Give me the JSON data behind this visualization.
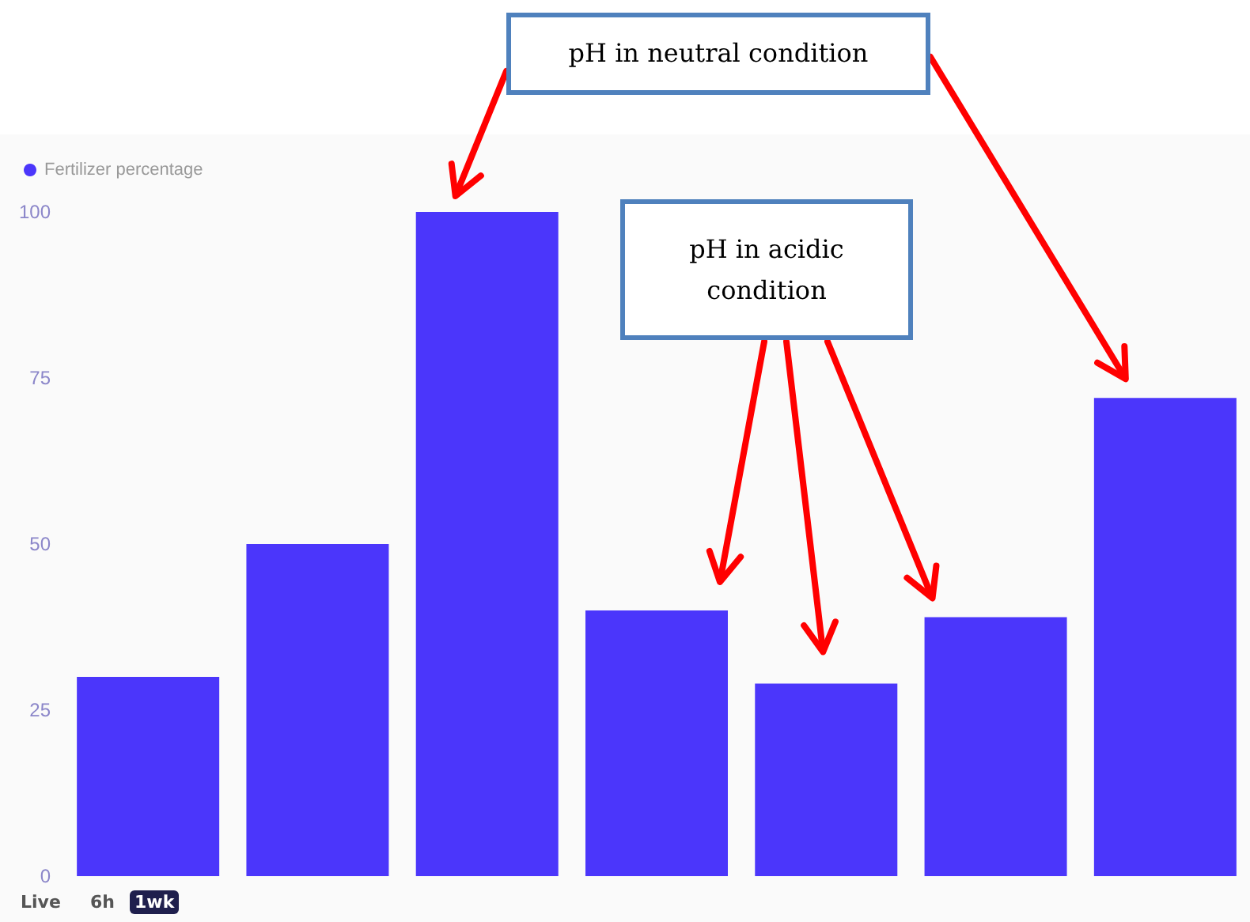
{
  "chart_data": {
    "type": "bar",
    "categories": [
      null,
      null,
      null,
      null,
      null,
      null,
      null
    ],
    "series": [
      {
        "name": "Fertilizer percentage",
        "color": "#4b36fb",
        "values": [
          30,
          50,
          100,
          40,
          29,
          39,
          72
        ]
      }
    ],
    "ylim": [
      0,
      100
    ],
    "yticks": [
      0,
      25,
      50,
      75,
      100
    ],
    "grid": false,
    "legend": "top left",
    "annotations": [
      "pH in neutral condition",
      "pH in acidic condition",
      "Live",
      "6h",
      "1wk"
    ]
  }
}
